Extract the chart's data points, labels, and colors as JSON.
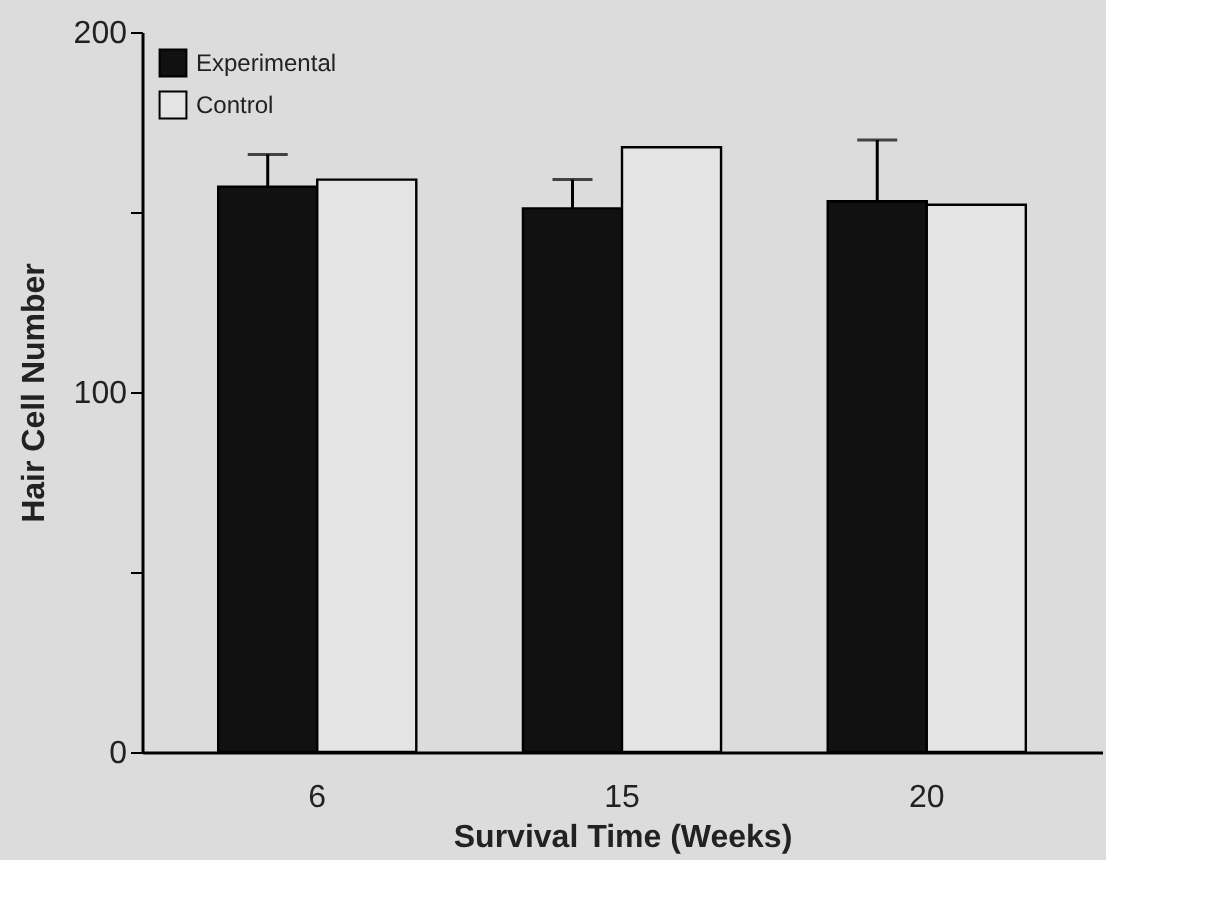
{
  "chart_data": {
    "type": "bar",
    "xlabel": "Survival Time (Weeks)",
    "ylabel": "Hair Cell Number",
    "categories": [
      "6",
      "15",
      "20"
    ],
    "series": [
      {
        "name": "Experimental",
        "color": "#111111",
        "values": [
          157,
          151,
          153
        ],
        "errors": [
          [
            157,
            166
          ],
          [
            151,
            159
          ],
          [
            153,
            170
          ]
        ]
      },
      {
        "name": "Control",
        "color": "#e4e4e4",
        "values": [
          159,
          168,
          152
        ]
      }
    ],
    "ylim": [
      0,
      200
    ],
    "yticks": [
      0,
      {
        "value": 50,
        "label": null
      },
      100,
      {
        "value": 150,
        "label": null
      },
      200
    ],
    "legend": "top left"
  }
}
